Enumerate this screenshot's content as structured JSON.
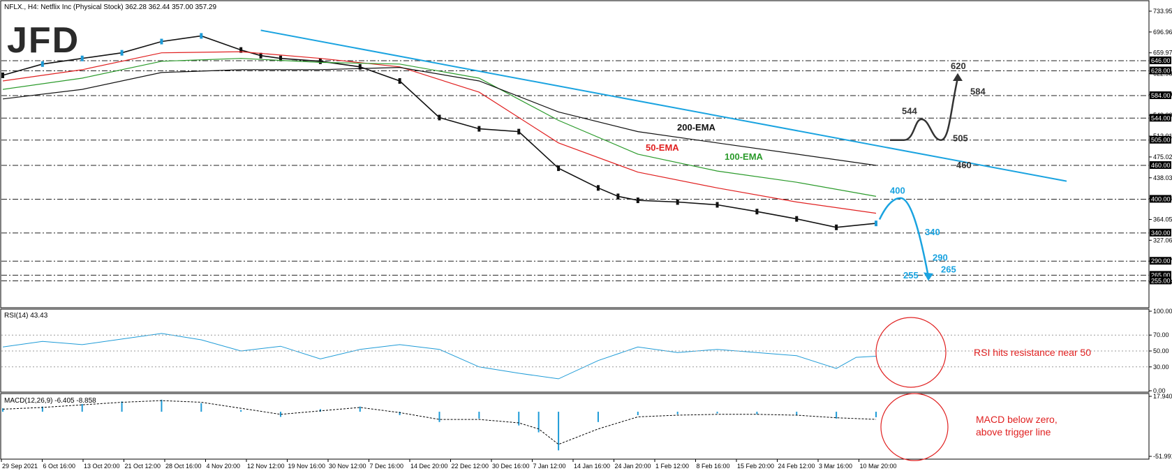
{
  "header": {
    "symbol_line": "NFLX., H4:  Netflix Inc (Physical Stock)  362.28 362.44 357.00 357.29",
    "logo": "JFD"
  },
  "colors": {
    "price_up": "#1e9bd7",
    "price_down": "#111111",
    "ema50": "#e02020",
    "ema100": "#2a9a2a",
    "ema200": "#111111",
    "trendline": "#1aa3e0",
    "bear_path": "#1aa3e0",
    "bull_path": "#333333",
    "circle": "#e02020"
  },
  "chart_data": [
    {
      "type": "line",
      "panel": "price",
      "y_axis_ticks": [
        "733.95",
        "696.96",
        "659.97",
        "622.98",
        "585.99",
        "549.00",
        "512.01",
        "475.02",
        "438.03",
        "401.04",
        "364.05",
        "327.06",
        "290.07",
        "253.08"
      ],
      "ylim": [
        253.08,
        733.95
      ],
      "level_labels": [
        "646.00",
        "628.00",
        "584.00",
        "544.00",
        "505.00",
        "460.00",
        "400.00",
        "340.00",
        "290.00",
        "265.00",
        "255.00"
      ],
      "annotations": {
        "ema200": "200-EMA",
        "ema100": "100-EMA",
        "ema50": "50-EMA",
        "bull": [
          "544",
          "505",
          "620",
          "584"
        ],
        "bear": [
          "400",
          "340",
          "290",
          "265",
          "255"
        ],
        "trend": "460"
      },
      "series": [
        {
          "name": "Price",
          "x_index": [
            0,
            10,
            20,
            30,
            40,
            50,
            60,
            65,
            70,
            80,
            90,
            100,
            110,
            120,
            130,
            140,
            150,
            155,
            160,
            170,
            180,
            190,
            200,
            210,
            220
          ],
          "values": [
            620,
            640,
            650,
            660,
            680,
            690,
            665,
            655,
            650,
            645,
            635,
            610,
            545,
            525,
            520,
            455,
            420,
            405,
            398,
            395,
            390,
            378,
            365,
            350,
            357
          ]
        },
        {
          "name": "50-EMA",
          "x_index": [
            0,
            20,
            40,
            60,
            80,
            100,
            120,
            140,
            160,
            180,
            200,
            220
          ],
          "values": [
            610,
            630,
            660,
            662,
            650,
            635,
            590,
            500,
            448,
            420,
            395,
            375
          ]
        },
        {
          "name": "100-EMA",
          "x_index": [
            0,
            20,
            40,
            60,
            80,
            100,
            120,
            140,
            160,
            180,
            200,
            220
          ],
          "values": [
            595,
            615,
            645,
            650,
            643,
            640,
            615,
            540,
            480,
            450,
            430,
            405
          ]
        },
        {
          "name": "200-EMA",
          "x_index": [
            0,
            20,
            40,
            60,
            80,
            100,
            120,
            140,
            160,
            180,
            200,
            220
          ],
          "values": [
            578,
            595,
            625,
            630,
            630,
            634,
            610,
            555,
            520,
            500,
            480,
            460
          ]
        }
      ]
    },
    {
      "type": "line",
      "panel": "rsi",
      "title": "RSI(14) 43.43",
      "y_axis_ticks": [
        "100.00",
        "70.00",
        "50.00",
        "30.00",
        "0.00"
      ],
      "ylim": [
        0,
        100
      ],
      "annotation": "RSI hits resistance near 50",
      "series": [
        {
          "name": "RSI(14)",
          "x_index": [
            0,
            10,
            20,
            30,
            40,
            50,
            60,
            70,
            80,
            90,
            100,
            110,
            120,
            130,
            140,
            150,
            160,
            170,
            180,
            190,
            200,
            210,
            215,
            220
          ],
          "values": [
            55,
            62,
            58,
            65,
            72,
            64,
            50,
            56,
            40,
            52,
            58,
            52,
            30,
            22,
            15,
            38,
            55,
            48,
            52,
            48,
            44,
            28,
            42,
            43.43
          ]
        }
      ]
    },
    {
      "type": "bar",
      "panel": "macd",
      "title": "MACD(12,26,9) -6.405 -8.858",
      "y_axis_ticks": [
        "17.940",
        "-51.991"
      ],
      "ylim": [
        -51.991,
        17.94
      ],
      "annotation": [
        "MACD below zero,",
        "above trigger line"
      ],
      "series": [
        {
          "name": "MACD(12,26,9)",
          "x_index": [
            0,
            10,
            20,
            30,
            40,
            50,
            60,
            70,
            80,
            90,
            100,
            110,
            120,
            130,
            135,
            140,
            150,
            160,
            170,
            180,
            190,
            200,
            210,
            220
          ],
          "values": [
            4,
            6,
            9,
            12,
            14,
            10,
            2,
            -6,
            3,
            6,
            -4,
            -12,
            -8,
            -16,
            -24,
            -45,
            -12,
            -4,
            -3,
            -2,
            -3,
            -4,
            -8,
            -6.405
          ]
        },
        {
          "name": "Signal",
          "x_index": [
            0,
            10,
            20,
            30,
            40,
            50,
            60,
            70,
            80,
            90,
            100,
            110,
            120,
            130,
            135,
            140,
            150,
            160,
            170,
            180,
            190,
            200,
            210,
            220
          ],
          "values": [
            3,
            5,
            8,
            11,
            13,
            11,
            4,
            -3,
            1,
            5,
            -1,
            -9,
            -9,
            -13,
            -20,
            -38,
            -20,
            -6,
            -4,
            -3,
            -3,
            -4,
            -7,
            -8.858
          ]
        }
      ]
    }
  ],
  "x_axis_labels": [
    "29 Sep 2021",
    "6 Oct 16:00",
    "13 Oct 20:00",
    "21 Oct 12:00",
    "28 Oct 16:00",
    "4 Nov 20:00",
    "12 Nov 12:00",
    "19 Nov 16:00",
    "30 Nov 12:00",
    "7 Dec 16:00",
    "14 Dec 20:00",
    "22 Dec 12:00",
    "30 Dec 16:00",
    "7 Jan 12:00",
    "14 Jan 16:00",
    "24 Jan 20:00",
    "1 Feb 12:00",
    "8 Feb 16:00",
    "15 Feb 20:00",
    "24 Feb 12:00",
    "3 Mar 16:00",
    "10 Mar 20:00"
  ]
}
